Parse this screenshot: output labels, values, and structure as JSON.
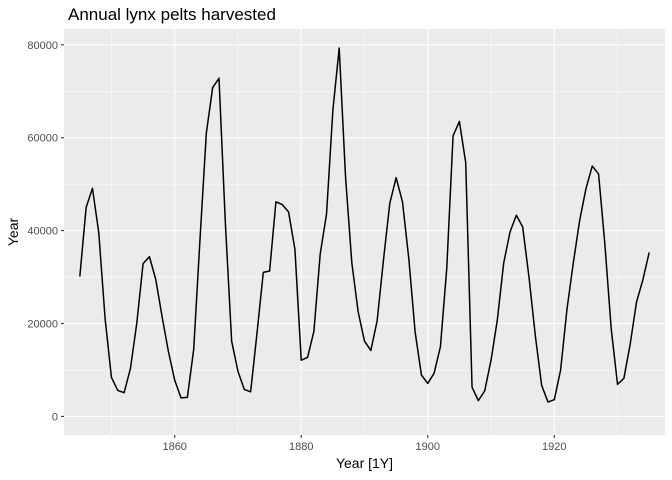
{
  "chart_data": {
    "type": "line",
    "title": "Annual lynx pelts harvested",
    "xlabel": "Year [1Y]",
    "ylabel": "Year",
    "xlim": [
      1842.5,
      1937.5
    ],
    "ylim": [
      -4000,
      83400
    ],
    "x_ticks": [
      1860,
      1880,
      1900,
      1920
    ],
    "y_ticks": [
      0,
      20000,
      40000,
      60000,
      80000
    ],
    "x_tick_labels": [
      "1860",
      "1880",
      "1900",
      "1920"
    ],
    "y_tick_labels": [
      "0",
      "20000",
      "40000",
      "60000",
      "80000"
    ],
    "grid": true,
    "background": "#EBEBEB",
    "line_color": "#000000",
    "series": [
      {
        "x": [
          1845,
          1846,
          1847,
          1848,
          1849,
          1850,
          1851,
          1852,
          1853,
          1854,
          1855,
          1856,
          1857,
          1858,
          1859,
          1860,
          1861,
          1862,
          1863,
          1864,
          1865,
          1866,
          1867,
          1868,
          1869,
          1870,
          1871,
          1872,
          1873,
          1874,
          1875,
          1876,
          1877,
          1878,
          1879,
          1880,
          1881,
          1882,
          1883,
          1884,
          1885,
          1886,
          1887,
          1888,
          1889,
          1890,
          1891,
          1892,
          1893,
          1894,
          1895,
          1896,
          1897,
          1898,
          1899,
          1900,
          1901,
          1902,
          1903,
          1904,
          1905,
          1906,
          1907,
          1908,
          1909,
          1910,
          1911,
          1912,
          1913,
          1914,
          1915,
          1916,
          1917,
          1918,
          1919,
          1920,
          1921,
          1922,
          1923,
          1924,
          1925,
          1926,
          1927,
          1928,
          1929,
          1930,
          1931,
          1932,
          1933,
          1934,
          1935
        ],
        "values": [
          30100,
          45000,
          49100,
          39500,
          21000,
          8400,
          5600,
          5100,
          10300,
          20000,
          32900,
          34400,
          29500,
          21500,
          14000,
          7800,
          4000,
          4100,
          14400,
          38200,
          61000,
          70800,
          72800,
          41800,
          16200,
          9700,
          5800,
          5300,
          17800,
          31000,
          31300,
          46200,
          45600,
          44000,
          36000,
          12100,
          12700,
          18300,
          35000,
          43600,
          65900,
          79300,
          51600,
          33000,
          22500,
          16200,
          14200,
          20600,
          33700,
          45900,
          51400,
          46200,
          34000,
          18200,
          8900,
          7100,
          9300,
          15000,
          31800,
          60400,
          63500,
          54600,
          6300,
          3400,
          5500,
          12100,
          20800,
          33000,
          39700,
          43300,
          40800,
          30000,
          17400,
          6700,
          3100,
          3600,
          10000,
          23000,
          33000,
          42100,
          49000,
          53900,
          52200,
          37000,
          18800,
          6900,
          8200,
          15600,
          24600,
          29400,
          35300
        ]
      }
    ]
  }
}
